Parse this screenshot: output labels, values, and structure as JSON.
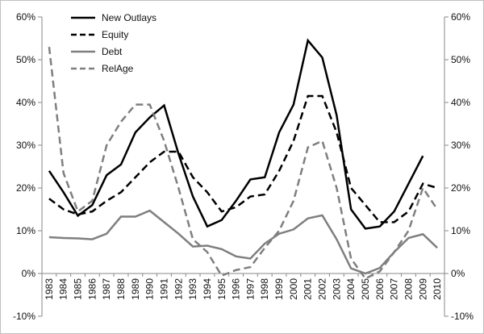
{
  "chart_data": {
    "type": "line",
    "title": "",
    "xlabel": "",
    "ylabel": "",
    "x": [
      "1983",
      "1984",
      "1985",
      "1986",
      "1987",
      "1988",
      "1989",
      "1990",
      "1991",
      "1992",
      "1993",
      "1994",
      "1995",
      "1996",
      "1997",
      "1998",
      "1999",
      "2000",
      "2001",
      "2002",
      "2003",
      "2004",
      "2005",
      "2006",
      "2007",
      "2008",
      "2009",
      "2010"
    ],
    "ylim": [
      -10,
      60
    ],
    "y_ticks": [
      "-10%",
      "0%",
      "10%",
      "20%",
      "30%",
      "40%",
      "50%",
      "60%"
    ],
    "y_tick_values": [
      -10,
      0,
      10,
      20,
      30,
      40,
      50,
      60
    ],
    "secondary_axis": true,
    "grid": false,
    "legend_position": "top-left",
    "series": [
      {
        "name": "New Outlays",
        "color": "#000000",
        "style": "solid",
        "width": 2.5,
        "values": [
          24,
          19,
          13.5,
          16,
          23,
          25.5,
          33,
          36.5,
          39.3,
          28,
          18,
          11,
          12.5,
          17,
          22,
          22.5,
          33,
          39.5,
          54.5,
          50.5,
          37,
          15,
          10.5,
          11,
          14.5,
          21,
          27.5,
          null
        ]
      },
      {
        "name": "Equity",
        "color": "#000000",
        "style": "dashed",
        "width": 2.5,
        "values": [
          17.5,
          15,
          13.8,
          14.5,
          17,
          19,
          22.5,
          26,
          28.5,
          28.5,
          22.5,
          19,
          14.5,
          15.5,
          18,
          18.5,
          24,
          31,
          41.5,
          41.5,
          33,
          20,
          16,
          12,
          12,
          14.5,
          21,
          20
        ]
      },
      {
        "name": "Debt",
        "color": "#7f7f7f",
        "style": "solid",
        "width": 2.5,
        "values": [
          8.5,
          8.3,
          8.2,
          8,
          9.3,
          13.3,
          13.3,
          14.7,
          12,
          9.3,
          6.3,
          6.5,
          5.7,
          4,
          3.5,
          7,
          9.3,
          10.3,
          12.9,
          13.6,
          8,
          1.2,
          0,
          1.3,
          5,
          8.3,
          9.2,
          6
        ]
      },
      {
        "name": "RelAge",
        "color": "#7f7f7f",
        "style": "dashed",
        "width": 2.5,
        "values": [
          53,
          23.5,
          14.5,
          17,
          30,
          35.5,
          39.5,
          39.5,
          31,
          20,
          8,
          5,
          -0.5,
          0.8,
          1.5,
          6,
          10,
          17,
          29.5,
          31,
          20,
          3.5,
          -1.2,
          0.5,
          5,
          10,
          20,
          15
        ]
      }
    ]
  }
}
